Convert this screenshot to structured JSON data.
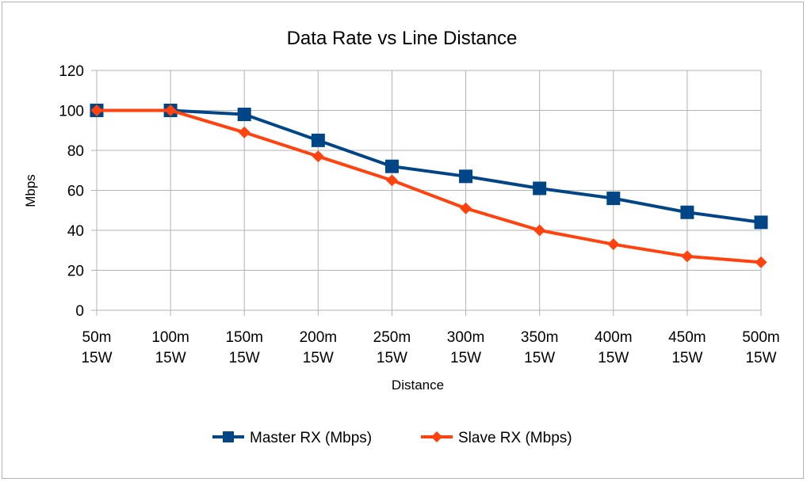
{
  "chart_data": {
    "type": "line",
    "title": "Data Rate vs Line Distance",
    "xlabel": "Distance",
    "ylabel": "Mbps",
    "categories": [
      [
        "50m",
        "15W"
      ],
      [
        "100m",
        "15W"
      ],
      [
        "150m",
        "15W"
      ],
      [
        "200m",
        "15W"
      ],
      [
        "250m",
        "15W"
      ],
      [
        "300m",
        "15W"
      ],
      [
        "350m",
        "15W"
      ],
      [
        "400m",
        "15W"
      ],
      [
        "450m",
        "15W"
      ],
      [
        "500m",
        "15W"
      ]
    ],
    "ylim": [
      0,
      120
    ],
    "yticks": [
      0,
      20,
      40,
      60,
      80,
      100,
      120
    ],
    "grid": true,
    "legend_position": "bottom",
    "series": [
      {
        "name": "Master RX (Mbps)",
        "color": "#004586",
        "marker": "square",
        "values": [
          100,
          100,
          98,
          85,
          72,
          67,
          61,
          56,
          49,
          44
        ]
      },
      {
        "name": "Slave RX (Mbps)",
        "color": "#ff420e",
        "marker": "diamond",
        "values": [
          100,
          100,
          89,
          77,
          65,
          51,
          40,
          33,
          27,
          24
        ]
      }
    ]
  }
}
